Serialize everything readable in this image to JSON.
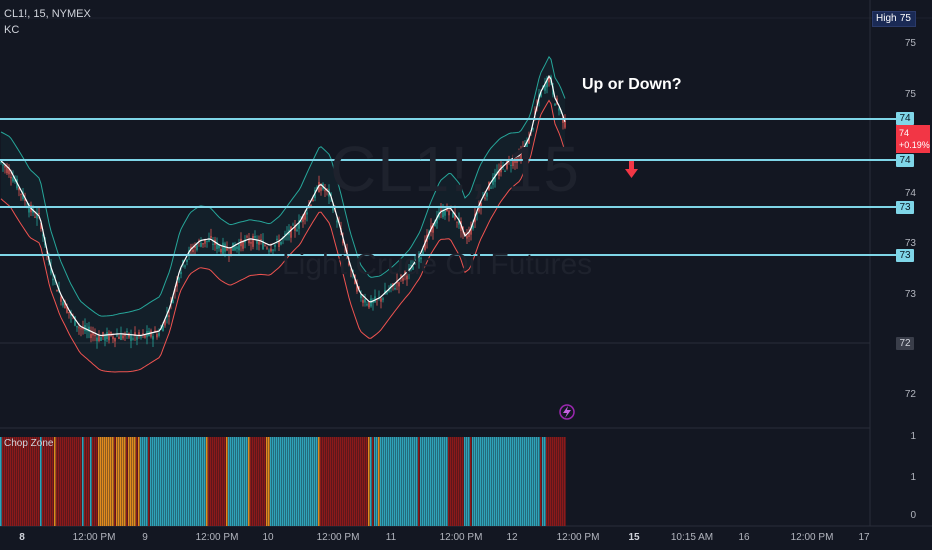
{
  "symbol": {
    "line": "CL1!, 15, NYMEX",
    "indicator": "KC"
  },
  "watermark": {
    "ticker": "CL1!, 15",
    "name": "Light Crude Oil Futures"
  },
  "annotation": "Up or Down?",
  "high_tag": {
    "label": "High",
    "value": "75"
  },
  "current_price": {
    "value": "74",
    "change": "+0.19%"
  },
  "price_axis": [
    "75",
    "75",
    "74",
    "73",
    "73",
    "72"
  ],
  "hline_tags": [
    "74",
    "74",
    "73",
    "73"
  ],
  "gray_tag": "72",
  "chop_zone": {
    "title": "Chop Zone",
    "axis": [
      "1",
      "1",
      "0"
    ]
  },
  "x_axis": [
    "8",
    "12:00 PM",
    "9",
    "12:00 PM",
    "10",
    "12:00 PM",
    "11",
    "12:00 PM",
    "12",
    "12:00 PM",
    "15",
    "10:15 AM",
    "16",
    "12:00 PM",
    "17"
  ],
  "colors": {
    "background": "#131722",
    "hline": "#7fd6e8",
    "up": "#26a69a",
    "down": "#ef5350",
    "kc_mid": "#ffffff",
    "kc_upper": "#26a69a",
    "kc_lower": "#ef5350",
    "chop_teal": "#2fa3b8",
    "chop_red": "#8b1a1a",
    "chop_orange": "#e08a1e",
    "arrow": "#f23645"
  },
  "chart_data": {
    "type": "candlestick",
    "symbol": "CL1!",
    "interval": "15",
    "exchange": "NYMEX",
    "horizontal_levels": [
      74.0,
      73.9,
      73.4,
      72.9
    ],
    "close_path": [
      [
        0,
        73.55
      ],
      [
        10,
        73.45
      ],
      [
        20,
        73.25
      ],
      [
        30,
        73.05
      ],
      [
        40,
        72.95
      ],
      [
        50,
        72.45
      ],
      [
        60,
        72.15
      ],
      [
        70,
        71.95
      ],
      [
        80,
        71.8
      ],
      [
        100,
        71.7
      ],
      [
        120,
        71.72
      ],
      [
        140,
        71.7
      ],
      [
        160,
        71.75
      ],
      [
        170,
        72.0
      ],
      [
        180,
        72.4
      ],
      [
        190,
        72.6
      ],
      [
        200,
        72.7
      ],
      [
        210,
        72.72
      ],
      [
        220,
        72.65
      ],
      [
        230,
        72.62
      ],
      [
        240,
        72.68
      ],
      [
        250,
        72.72
      ],
      [
        260,
        72.7
      ],
      [
        270,
        72.65
      ],
      [
        280,
        72.7
      ],
      [
        290,
        72.8
      ],
      [
        300,
        72.9
      ],
      [
        310,
        73.1
      ],
      [
        320,
        73.3
      ],
      [
        330,
        73.2
      ],
      [
        340,
        72.85
      ],
      [
        350,
        72.45
      ],
      [
        360,
        72.15
      ],
      [
        370,
        72.05
      ],
      [
        380,
        72.1
      ],
      [
        390,
        72.2
      ],
      [
        400,
        72.3
      ],
      [
        410,
        72.4
      ],
      [
        420,
        72.55
      ],
      [
        430,
        72.8
      ],
      [
        440,
        73.0
      ],
      [
        450,
        73.05
      ],
      [
        460,
        72.9
      ],
      [
        465,
        72.75
      ],
      [
        470,
        72.8
      ],
      [
        480,
        73.1
      ],
      [
        490,
        73.3
      ],
      [
        500,
        73.45
      ],
      [
        510,
        73.55
      ],
      [
        520,
        73.6
      ],
      [
        530,
        73.8
      ],
      [
        540,
        74.25
      ],
      [
        550,
        74.45
      ],
      [
        555,
        74.2
      ],
      [
        560,
        74.1
      ],
      [
        565,
        73.95
      ]
    ],
    "chop_zone_colors": [
      "red",
      "red",
      "teal",
      "teal",
      "red",
      "orange",
      "teal",
      "teal",
      "teal",
      "red"
    ]
  }
}
